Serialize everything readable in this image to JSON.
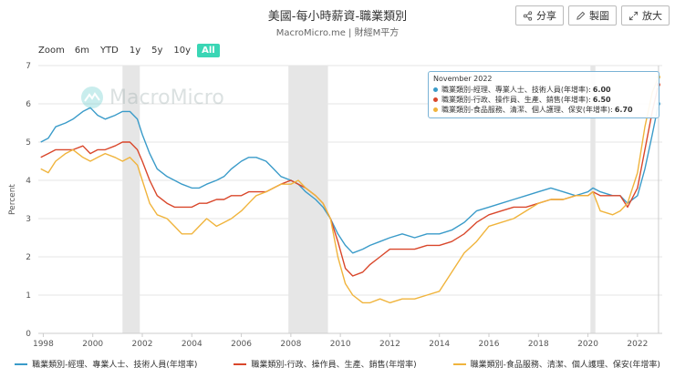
{
  "header": {
    "title": "美國-每小時薪資-職業類別",
    "subtitle": "MacroMicro.me | 財經M平方"
  },
  "toolbar": {
    "share_label": "分享",
    "draw_label": "製圖",
    "expand_label": "放大"
  },
  "zoom": {
    "label": "Zoom",
    "options": [
      "6m",
      "YTD",
      "1y",
      "5y",
      "10y",
      "All"
    ],
    "active": "All"
  },
  "watermark": {
    "text": "MacroMicro"
  },
  "tooltip": {
    "date": "November 2022",
    "rows": [
      {
        "label": "職業類別-經理、專業人士、技術人員(年增率)",
        "value": "6.00"
      },
      {
        "label": "職業類別-行政、操作員、生產、銷售(年增率)",
        "value": "6.50"
      },
      {
        "label": "職業類別-食品服務、清潔、個人護理、保安(年增率)",
        "value": "6.70"
      }
    ]
  },
  "colors": {
    "series1": "#3a9bc9",
    "series2": "#d9472b",
    "series3": "#f0b43c",
    "recession": "#e6e6e6",
    "grid": "#e6e6e6"
  },
  "chart_data": {
    "type": "line",
    "ylabel": "Percent",
    "xlabel": "",
    "ylim": [
      0,
      7
    ],
    "yticks": [
      0,
      1,
      2,
      3,
      4,
      5,
      6,
      7
    ],
    "xticks": [
      "1998",
      "2000",
      "2002",
      "2004",
      "2006",
      "2008",
      "2010",
      "2012",
      "2014",
      "2016",
      "2018",
      "2020",
      "2022"
    ],
    "xlim": [
      1997.8,
      2023.0
    ],
    "recessions": [
      [
        2001.2,
        2001.9
      ],
      [
        2007.9,
        2009.5
      ],
      [
        2020.1,
        2020.3
      ]
    ],
    "legend": "bottom",
    "series": [
      {
        "name": "職業類別-經理、專業人士、技術人員(年增率)",
        "x": [
          1997.9,
          1998.2,
          1998.5,
          1998.9,
          1999.2,
          1999.6,
          1999.9,
          2000.2,
          2000.5,
          2000.9,
          2001.2,
          2001.5,
          2001.8,
          2002.0,
          2002.3,
          2002.6,
          2003.0,
          2003.3,
          2003.6,
          2004.0,
          2004.3,
          2004.6,
          2005.0,
          2005.3,
          2005.6,
          2006.0,
          2006.3,
          2006.6,
          2007.0,
          2007.3,
          2007.6,
          2008.0,
          2008.3,
          2008.6,
          2009.0,
          2009.3,
          2009.6,
          2009.9,
          2010.2,
          2010.5,
          2010.9,
          2011.2,
          2011.6,
          2012.0,
          2012.5,
          2013.0,
          2013.5,
          2014.0,
          2014.5,
          2015.0,
          2015.5,
          2016.0,
          2016.5,
          2017.0,
          2017.5,
          2018.0,
          2018.5,
          2019.0,
          2019.5,
          2020.0,
          2020.2,
          2020.5,
          2021.0,
          2021.3,
          2021.6,
          2022.0,
          2022.3,
          2022.6,
          2022.85
        ],
        "values": [
          5.0,
          5.1,
          5.4,
          5.5,
          5.6,
          5.8,
          5.9,
          5.7,
          5.6,
          5.7,
          5.8,
          5.8,
          5.6,
          5.2,
          4.7,
          4.3,
          4.1,
          4.0,
          3.9,
          3.8,
          3.8,
          3.9,
          4.0,
          4.1,
          4.3,
          4.5,
          4.6,
          4.6,
          4.5,
          4.3,
          4.1,
          4.0,
          3.9,
          3.7,
          3.5,
          3.3,
          3.0,
          2.6,
          2.3,
          2.1,
          2.2,
          2.3,
          2.4,
          2.5,
          2.6,
          2.5,
          2.6,
          2.6,
          2.7,
          2.9,
          3.2,
          3.3,
          3.4,
          3.5,
          3.6,
          3.7,
          3.8,
          3.7,
          3.6,
          3.7,
          3.8,
          3.7,
          3.6,
          3.6,
          3.4,
          3.6,
          4.3,
          5.2,
          6.0
        ]
      },
      {
        "name": "職業類別-行政、操作員、生產、銷售(年增率)",
        "x": [
          1997.9,
          1998.2,
          1998.5,
          1998.9,
          1999.2,
          1999.6,
          1999.9,
          2000.2,
          2000.5,
          2000.9,
          2001.2,
          2001.5,
          2001.8,
          2002.0,
          2002.3,
          2002.6,
          2003.0,
          2003.3,
          2003.6,
          2004.0,
          2004.3,
          2004.6,
          2005.0,
          2005.3,
          2005.6,
          2006.0,
          2006.3,
          2006.6,
          2007.0,
          2007.3,
          2007.6,
          2008.0,
          2008.3,
          2008.6,
          2009.0,
          2009.3,
          2009.6,
          2009.9,
          2010.2,
          2010.5,
          2010.9,
          2011.2,
          2011.6,
          2012.0,
          2012.5,
          2013.0,
          2013.5,
          2014.0,
          2014.5,
          2015.0,
          2015.5,
          2016.0,
          2016.5,
          2017.0,
          2017.5,
          2018.0,
          2018.5,
          2019.0,
          2019.5,
          2020.0,
          2020.2,
          2020.5,
          2021.0,
          2021.3,
          2021.6,
          2022.0,
          2022.3,
          2022.6,
          2022.85
        ],
        "values": [
          4.6,
          4.7,
          4.8,
          4.8,
          4.8,
          4.9,
          4.7,
          4.8,
          4.8,
          4.9,
          5.0,
          5.0,
          4.8,
          4.5,
          4.0,
          3.6,
          3.4,
          3.3,
          3.3,
          3.3,
          3.4,
          3.4,
          3.5,
          3.5,
          3.6,
          3.6,
          3.7,
          3.7,
          3.7,
          3.8,
          3.9,
          4.0,
          3.9,
          3.8,
          3.6,
          3.4,
          3.0,
          2.4,
          1.7,
          1.5,
          1.6,
          1.8,
          2.0,
          2.2,
          2.2,
          2.2,
          2.3,
          2.3,
          2.4,
          2.6,
          2.9,
          3.1,
          3.2,
          3.3,
          3.3,
          3.4,
          3.5,
          3.5,
          3.6,
          3.6,
          3.7,
          3.6,
          3.6,
          3.6,
          3.3,
          3.8,
          4.8,
          5.8,
          6.5
        ]
      },
      {
        "name": "職業類別-食品服務、清潔、個人護理、保安(年增率)",
        "x": [
          1997.9,
          1998.2,
          1998.5,
          1998.9,
          1999.2,
          1999.6,
          1999.9,
          2000.2,
          2000.5,
          2000.9,
          2001.2,
          2001.5,
          2001.8,
          2002.0,
          2002.3,
          2002.6,
          2003.0,
          2003.3,
          2003.6,
          2004.0,
          2004.3,
          2004.6,
          2005.0,
          2005.3,
          2005.6,
          2006.0,
          2006.3,
          2006.6,
          2007.0,
          2007.3,
          2007.6,
          2008.0,
          2008.3,
          2008.6,
          2009.0,
          2009.3,
          2009.6,
          2009.9,
          2010.2,
          2010.5,
          2010.9,
          2011.2,
          2011.6,
          2012.0,
          2012.5,
          2013.0,
          2013.5,
          2014.0,
          2014.5,
          2015.0,
          2015.5,
          2016.0,
          2016.5,
          2017.0,
          2017.5,
          2018.0,
          2018.5,
          2019.0,
          2019.5,
          2020.0,
          2020.2,
          2020.5,
          2021.0,
          2021.3,
          2021.6,
          2022.0,
          2022.3,
          2022.6,
          2022.85
        ],
        "values": [
          4.3,
          4.2,
          4.5,
          4.7,
          4.8,
          4.6,
          4.5,
          4.6,
          4.7,
          4.6,
          4.5,
          4.6,
          4.4,
          4.0,
          3.4,
          3.1,
          3.0,
          2.8,
          2.6,
          2.6,
          2.8,
          3.0,
          2.8,
          2.9,
          3.0,
          3.2,
          3.4,
          3.6,
          3.7,
          3.8,
          3.9,
          3.9,
          4.0,
          3.8,
          3.6,
          3.4,
          3.0,
          2.0,
          1.3,
          1.0,
          0.8,
          0.8,
          0.9,
          0.8,
          0.9,
          0.9,
          1.0,
          1.1,
          1.6,
          2.1,
          2.4,
          2.8,
          2.9,
          3.0,
          3.2,
          3.4,
          3.5,
          3.5,
          3.6,
          3.6,
          3.7,
          3.2,
          3.1,
          3.2,
          3.4,
          4.2,
          5.4,
          6.3,
          6.7
        ]
      }
    ]
  }
}
